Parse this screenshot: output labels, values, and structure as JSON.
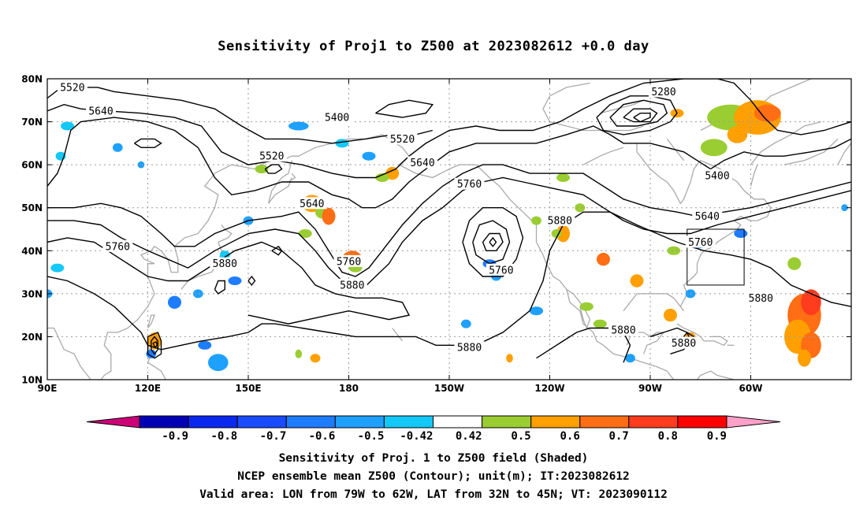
{
  "title": "Sensitivity of Proj1 to Z500 at 2023082612 +0.0 day",
  "axes": {
    "lat_labels": [
      "80N",
      "70N",
      "60N",
      "50N",
      "40N",
      "30N",
      "20N",
      "10N"
    ],
    "lon_labels": [
      "90E",
      "120E",
      "150E",
      "180",
      "150W",
      "120W",
      "90W",
      "60W"
    ]
  },
  "contour_labels": [
    {
      "text": "5520",
      "lon": 97.5,
      "lat": 78
    },
    {
      "text": "5640",
      "lon": 106,
      "lat": 72.5
    },
    {
      "text": "5400",
      "lon": 176.5,
      "lat": 71
    },
    {
      "text": "5520",
      "lon": 157,
      "lat": 62
    },
    {
      "text": "5520",
      "lon": 196,
      "lat": 66
    },
    {
      "text": "5640",
      "lon": 202,
      "lat": 60.5
    },
    {
      "text": "5760",
      "lon": 216,
      "lat": 55.5
    },
    {
      "text": "5280",
      "lon": 274,
      "lat": 77
    },
    {
      "text": "5400",
      "lon": 290,
      "lat": 57.5
    },
    {
      "text": "5640",
      "lon": 287,
      "lat": 48
    },
    {
      "text": "5640",
      "lon": 169,
      "lat": 51
    },
    {
      "text": "5760",
      "lon": 111,
      "lat": 41
    },
    {
      "text": "5880",
      "lon": 143,
      "lat": 37
    },
    {
      "text": "5760",
      "lon": 180,
      "lat": 37.5
    },
    {
      "text": "5880",
      "lon": 181,
      "lat": 32
    },
    {
      "text": "5760",
      "lon": 225.5,
      "lat": 35.5
    },
    {
      "text": "5880",
      "lon": 243,
      "lat": 47
    },
    {
      "text": "5760",
      "lon": 285,
      "lat": 42
    },
    {
      "text": "5880",
      "lon": 303,
      "lat": 29
    },
    {
      "text": "5880",
      "lon": 262,
      "lat": 21.5
    },
    {
      "text": "5880",
      "lon": 280,
      "lat": 18.5
    },
    {
      "text": "5880",
      "lon": 216,
      "lat": 17.5
    }
  ],
  "colorbar": {
    "labels": [
      "-0.9",
      "-0.8",
      "-0.7",
      "-0.6",
      "-0.5",
      "-0.42",
      "0.42",
      "0.5",
      "0.6",
      "0.7",
      "0.8",
      "0.9"
    ],
    "colors": [
      "#0000b4",
      "#0a28f0",
      "#1a4bff",
      "#1e7cff",
      "#1ea0ff",
      "#14c8f8",
      "#ffffff",
      "#9acd32",
      "#ffa000",
      "#ff6e14",
      "#ff3c1e",
      "#ff0000"
    ],
    "low_extend_color": "#cc0077",
    "high_extend_color": "#ffa0c8"
  },
  "valid_area": {
    "lon_min_w": 79,
    "lon_max_w": 62,
    "lat_min_n": 32,
    "lat_max_n": 45
  },
  "captions": {
    "line1": "Sensitivity of Proj. 1 to Z500 field (Shaded)",
    "line2": "NCEP ensemble mean Z500 (Contour); unit(m); IT:2023082612",
    "line3": "Valid area: LON from 79W to 62W, LAT from 32N to 45N; VT: 2023090112"
  }
}
